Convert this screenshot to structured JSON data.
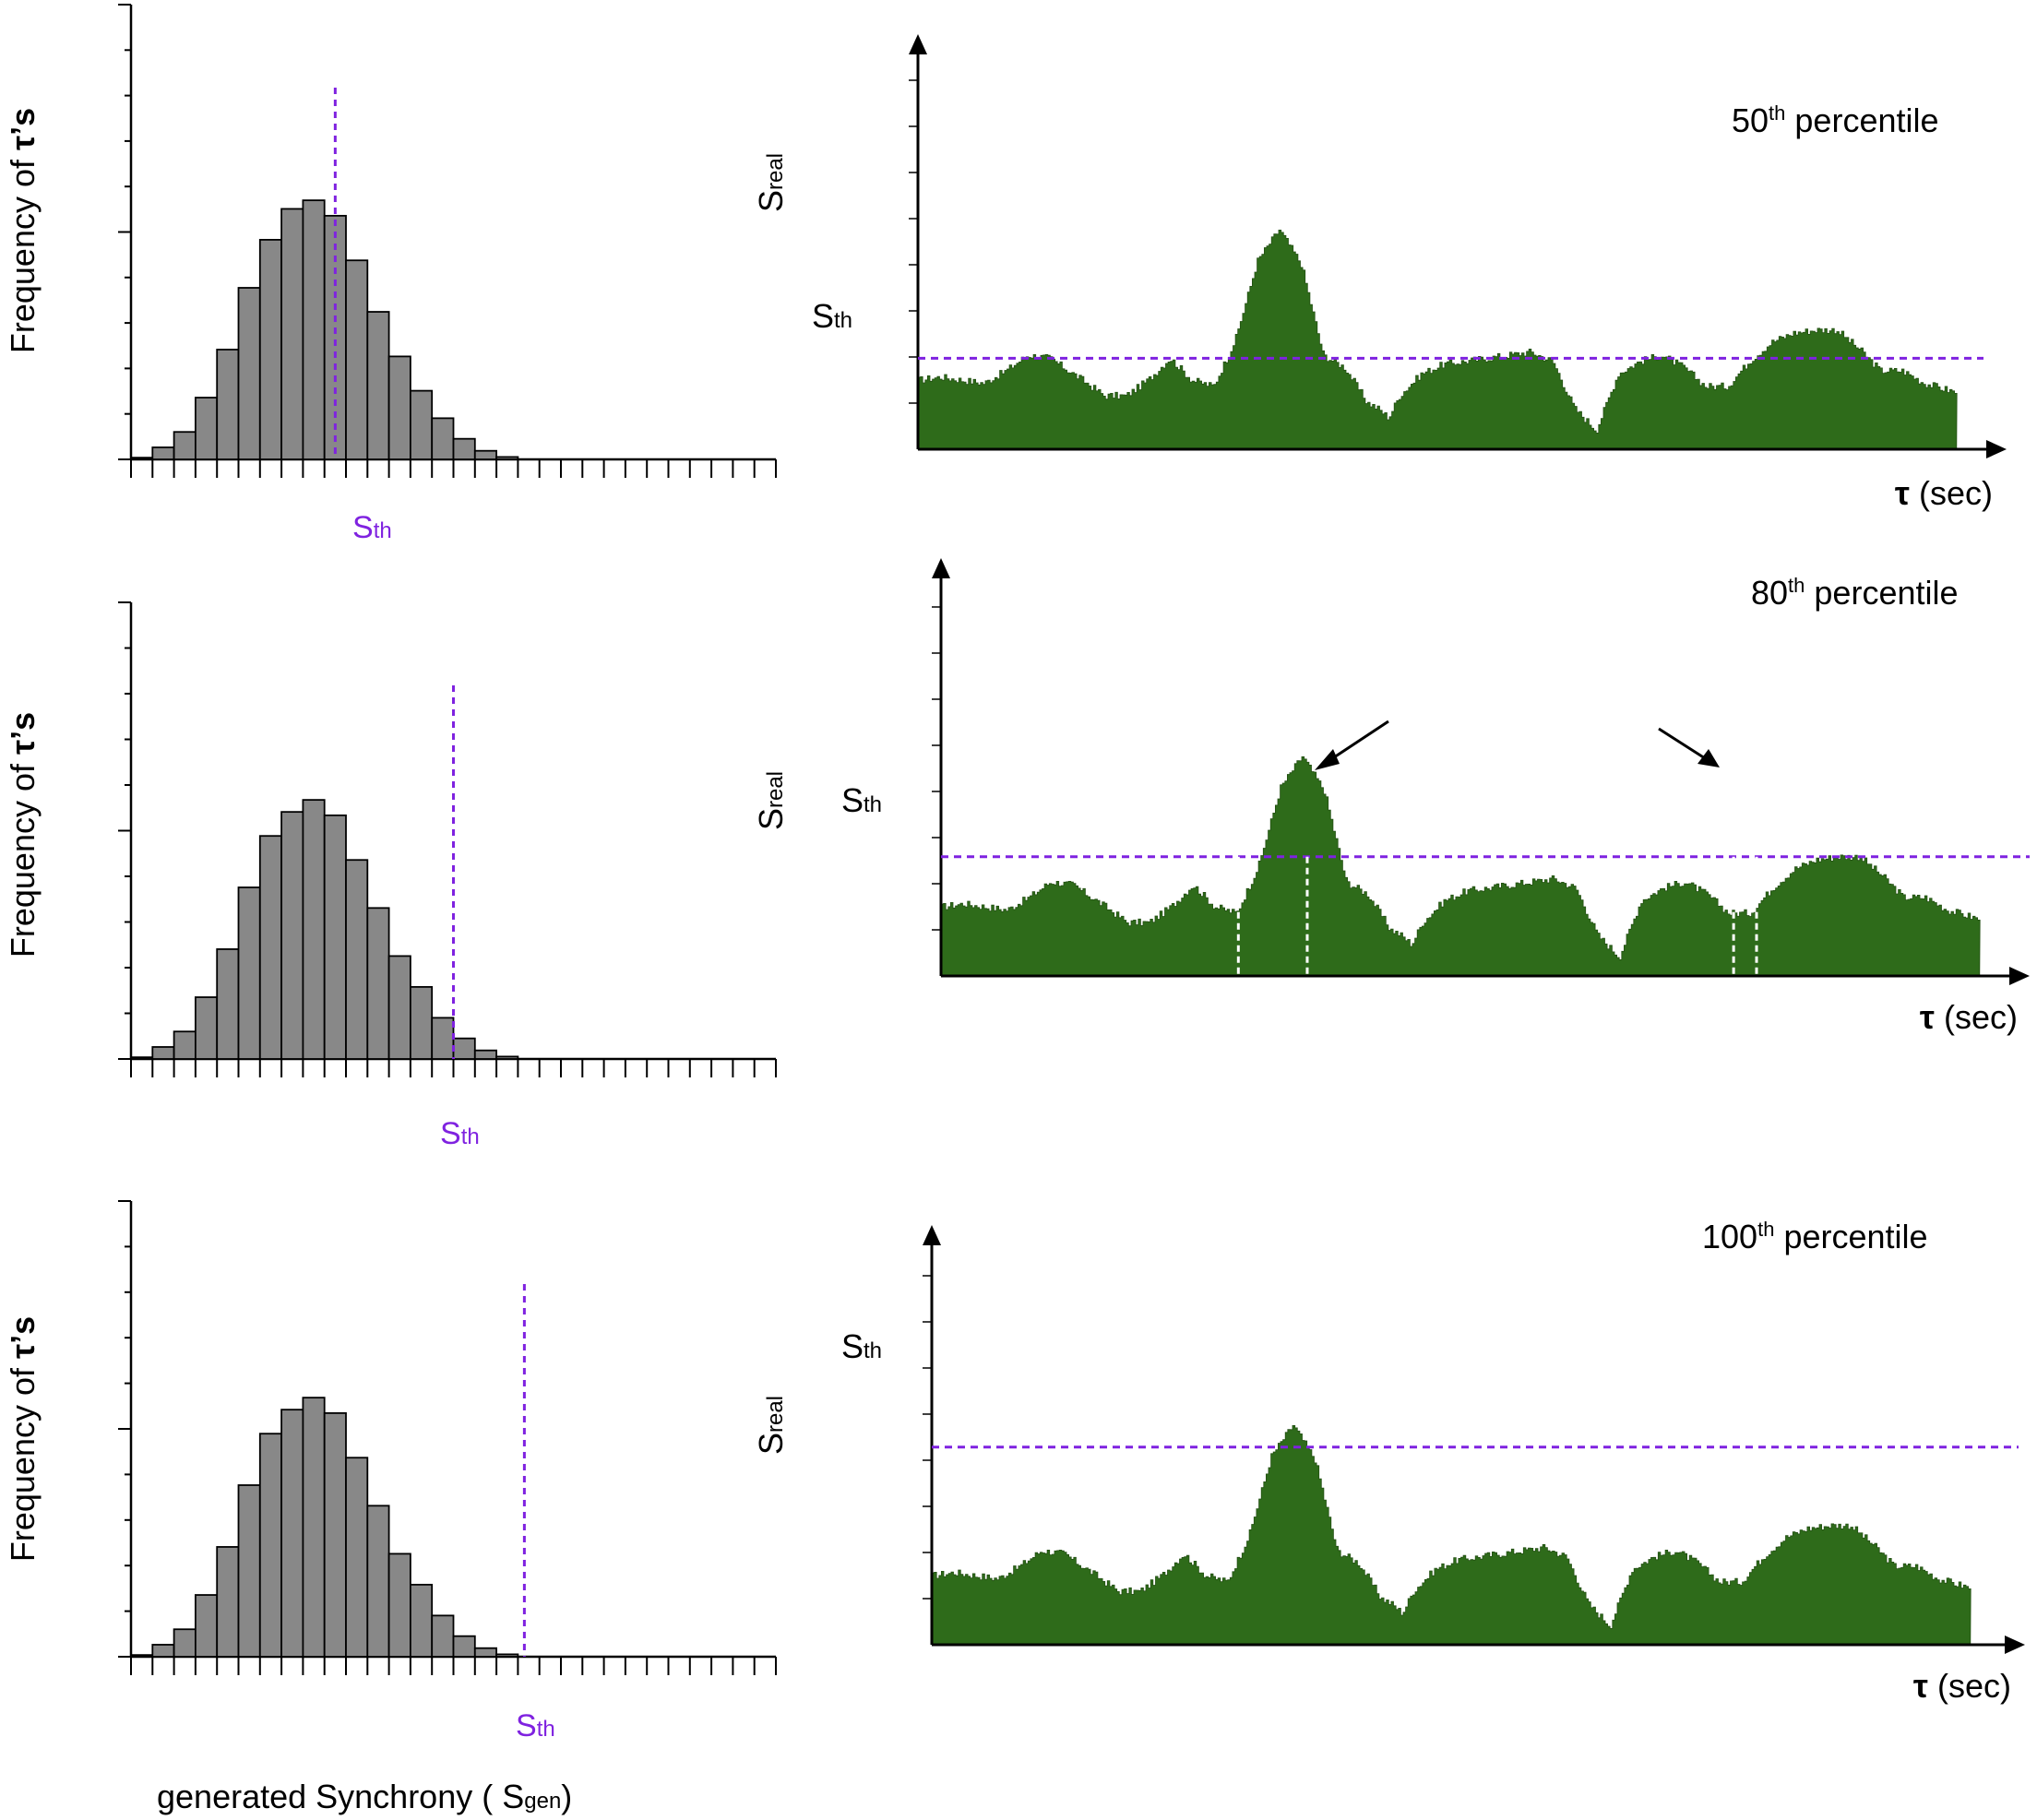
{
  "colors": {
    "histogram_bar": "#888888",
    "histogram_edge": "#000000",
    "signal_fill": "#2e6b1a",
    "signal_dark": "#224f12",
    "threshold": "#7f22e0",
    "axis": "#000000",
    "crossing_marker": "#ffffff"
  },
  "labels": {
    "freq_base": "Frequency of ",
    "freq_tau": "τ",
    "freq_tail": "’s",
    "s_letter": "S",
    "th_sub": "th",
    "real_sub": "real",
    "gen_sub": "gen",
    "xlabel_gen_prefix": "generated Synchrony ( ",
    "xlabel_gen_suffix": ")",
    "tau_symbol": "τ",
    "tau_unit": " (sec)",
    "percentile_word": " percentile"
  },
  "chart_data": [
    {
      "type": "bar",
      "panel": "top-left",
      "title": "",
      "ylabel": "Frequency of τ’s",
      "xlabel": "",
      "bins": 30,
      "values": [
        0.5,
        3.5,
        8,
        18,
        32,
        50,
        64,
        73,
        75.5,
        71,
        58,
        43,
        30,
        20,
        12,
        6,
        2.5,
        0.7,
        0,
        0,
        0,
        0,
        0,
        0,
        0,
        0,
        0,
        0,
        0,
        0
      ],
      "ylim": [
        0,
        100
      ],
      "threshold_bin_position": 9.5,
      "threshold_label": "Sth",
      "threshold_color": "#7f22e0"
    },
    {
      "type": "bar",
      "panel": "middle-left",
      "title": "",
      "ylabel": "Frequency of τ’s",
      "xlabel": "",
      "bins": 30,
      "values": [
        0.5,
        3.5,
        8,
        18,
        32,
        50,
        65,
        72,
        75.5,
        71,
        58,
        44,
        30,
        21,
        12,
        6,
        2.5,
        0.7,
        0,
        0,
        0,
        0,
        0,
        0,
        0,
        0,
        0,
        0,
        0,
        0
      ],
      "ylim": [
        0,
        100
      ],
      "threshold_bin_position": 15,
      "threshold_label": "Sth",
      "threshold_color": "#7f22e0"
    },
    {
      "type": "bar",
      "panel": "bottom-left",
      "title": "",
      "ylabel": "Frequency of τ’s",
      "xlabel": "generated Synchrony ( Sgen)",
      "bins": 30,
      "values": [
        0.5,
        3.5,
        8,
        18,
        32,
        50,
        65,
        72,
        75.5,
        71,
        58,
        44,
        30,
        21,
        12,
        6,
        2.5,
        0.7,
        0,
        0,
        0,
        0,
        0,
        0,
        0,
        0,
        0,
        0,
        0,
        0
      ],
      "ylim": [
        0,
        100
      ],
      "threshold_bin_position": 18.3,
      "threshold_label": "Sth",
      "threshold_color": "#7f22e0"
    },
    {
      "type": "area",
      "panel": "top-right",
      "title": "50th percentile",
      "percentile": "50",
      "percentile_suffix": "th",
      "ylabel": "Sreal",
      "xlabel": "τ (sec)",
      "xlim": [
        0,
        100
      ],
      "ylim": [
        0,
        100
      ],
      "signal_end": 95,
      "x": [
        0,
        2,
        4,
        6,
        8,
        10,
        12,
        15,
        17,
        19,
        21,
        23,
        25,
        27,
        29,
        31,
        33,
        35,
        37,
        39,
        41,
        42,
        43,
        44,
        46,
        48,
        50,
        52,
        54,
        56,
        58,
        60,
        62,
        64,
        66,
        68,
        70,
        72,
        74,
        76,
        78,
        80,
        82,
        84,
        86,
        88,
        90,
        92,
        95
      ],
      "y": [
        22,
        23,
        22,
        21,
        25,
        30,
        29,
        22,
        17,
        17,
        22,
        29,
        22,
        20,
        35,
        60,
        70,
        59,
        30,
        26,
        15,
        13,
        10,
        17,
        24,
        27,
        28,
        29,
        30,
        31,
        28,
        13,
        6,
        24,
        28,
        30,
        26,
        20,
        20,
        28,
        34,
        37,
        38,
        38,
        32,
        25,
        25,
        21,
        18
      ],
      "threshold_y": 29,
      "threshold_label": "Sth",
      "annotations": []
    },
    {
      "type": "area",
      "panel": "middle-right",
      "title": "80th percentile",
      "percentile": "80",
      "percentile_suffix": "th",
      "ylabel": "Sreal",
      "xlabel": "τ (sec)",
      "xlim": [
        0,
        100
      ],
      "ylim": [
        0,
        100
      ],
      "signal_end": 95,
      "x": [
        0,
        2,
        4,
        6,
        8,
        10,
        12,
        15,
        17,
        19,
        21,
        23,
        25,
        27,
        29,
        31,
        33,
        35,
        37,
        39,
        41,
        42,
        43,
        44,
        46,
        48,
        50,
        52,
        54,
        56,
        58,
        60,
        62,
        64,
        66,
        68,
        70,
        72,
        74,
        76,
        78,
        80,
        82,
        84,
        86,
        88,
        90,
        92,
        95
      ],
      "y": [
        22,
        23,
        22,
        21,
        25,
        30,
        29,
        22,
        17,
        17,
        22,
        29,
        22,
        20,
        35,
        60,
        70,
        59,
        30,
        26,
        15,
        13,
        10,
        17,
        24,
        27,
        28,
        29,
        30,
        31,
        28,
        13,
        6,
        24,
        28,
        30,
        26,
        20,
        20,
        28,
        34,
        37,
        38,
        38,
        32,
        25,
        25,
        21,
        18
      ],
      "threshold_y": 38,
      "threshold_label": "Sth",
      "crossings": [
        27.2,
        33.5,
        72.5,
        74.6
      ],
      "annotations": [
        "arrow pointing to main peak crossing",
        "arrow pointing to secondary peak crossing"
      ]
    },
    {
      "type": "area",
      "panel": "bottom-right",
      "title": "100th percentile",
      "percentile": "100",
      "percentile_suffix": "th",
      "ylabel": "Sreal",
      "xlabel": "τ (sec)",
      "xlim": [
        0,
        100
      ],
      "ylim": [
        0,
        100
      ],
      "signal_end": 95,
      "x": [
        0,
        2,
        4,
        6,
        8,
        10,
        12,
        15,
        17,
        19,
        21,
        23,
        25,
        27,
        29,
        31,
        33,
        35,
        37,
        39,
        41,
        42,
        43,
        44,
        46,
        48,
        50,
        52,
        54,
        56,
        58,
        60,
        62,
        64,
        66,
        68,
        70,
        72,
        74,
        76,
        78,
        80,
        82,
        84,
        86,
        88,
        90,
        92,
        95
      ],
      "y": [
        22,
        23,
        22,
        21,
        25,
        30,
        29,
        22,
        17,
        17,
        22,
        29,
        22,
        20,
        35,
        60,
        70,
        59,
        30,
        26,
        15,
        13,
        10,
        17,
        24,
        27,
        28,
        29,
        30,
        31,
        28,
        13,
        6,
        24,
        28,
        30,
        26,
        20,
        20,
        28,
        34,
        37,
        38,
        38,
        32,
        25,
        25,
        21,
        18
      ],
      "threshold_y": 63,
      "threshold_label": "Sth",
      "annotations": []
    }
  ]
}
